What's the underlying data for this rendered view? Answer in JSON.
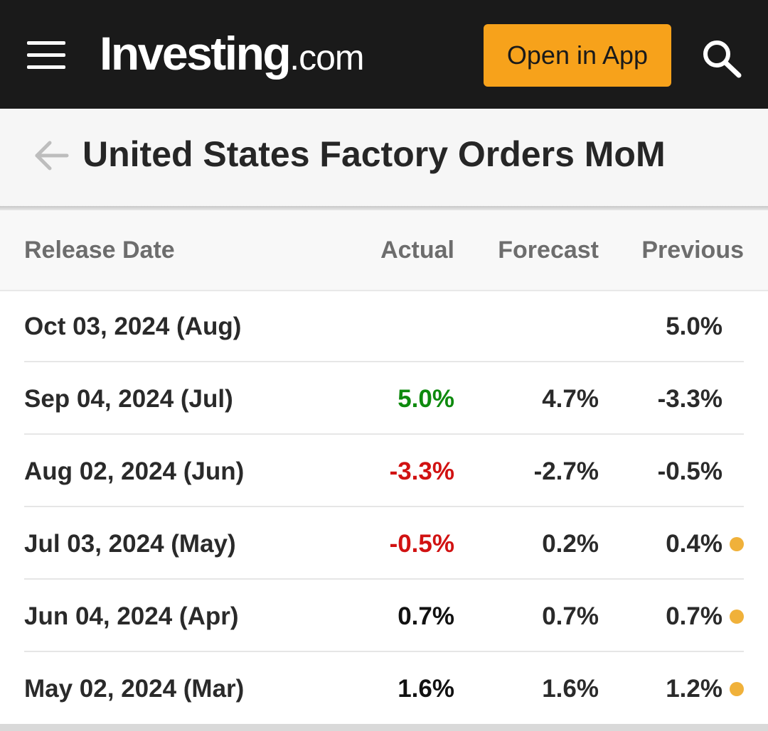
{
  "header": {
    "logo_main": "Investing",
    "logo_suffix": ".com",
    "open_app_label": "Open in App",
    "icons": {
      "menu": "hamburger-menu-icon",
      "search": "search-icon"
    }
  },
  "page": {
    "title": "United States Factory Orders MoM",
    "back_icon": "back-arrow-icon"
  },
  "table": {
    "columns": {
      "release_date": "Release Date",
      "actual": "Actual",
      "forecast": "Forecast",
      "previous": "Previous"
    },
    "rows": [
      {
        "date": "Oct 03, 2024 (Aug)",
        "actual": "",
        "actual_tone": "neu",
        "forecast": "",
        "previous": "5.0%",
        "revised": false
      },
      {
        "date": "Sep 04, 2024 (Jul)",
        "actual": "5.0%",
        "actual_tone": "pos",
        "forecast": "4.7%",
        "previous": "-3.3%",
        "revised": false
      },
      {
        "date": "Aug 02, 2024 (Jun)",
        "actual": "-3.3%",
        "actual_tone": "neg",
        "forecast": "-2.7%",
        "previous": "-0.5%",
        "revised": false
      },
      {
        "date": "Jul 03, 2024 (May)",
        "actual": "-0.5%",
        "actual_tone": "neg",
        "forecast": "0.2%",
        "previous": "0.4%",
        "revised": true
      },
      {
        "date": "Jun 04, 2024 (Apr)",
        "actual": "0.7%",
        "actual_tone": "neu",
        "forecast": "0.7%",
        "previous": "0.7%",
        "revised": true
      },
      {
        "date": "May 02, 2024 (Mar)",
        "actual": "1.6%",
        "actual_tone": "neu",
        "forecast": "1.6%",
        "previous": "1.2%",
        "revised": true
      }
    ]
  },
  "colors": {
    "header_bg": "#1a1a1a",
    "accent": "#f7a21b",
    "positive": "#0e8a0e",
    "negative": "#d11212",
    "revision_dot": "#f0b13a"
  }
}
